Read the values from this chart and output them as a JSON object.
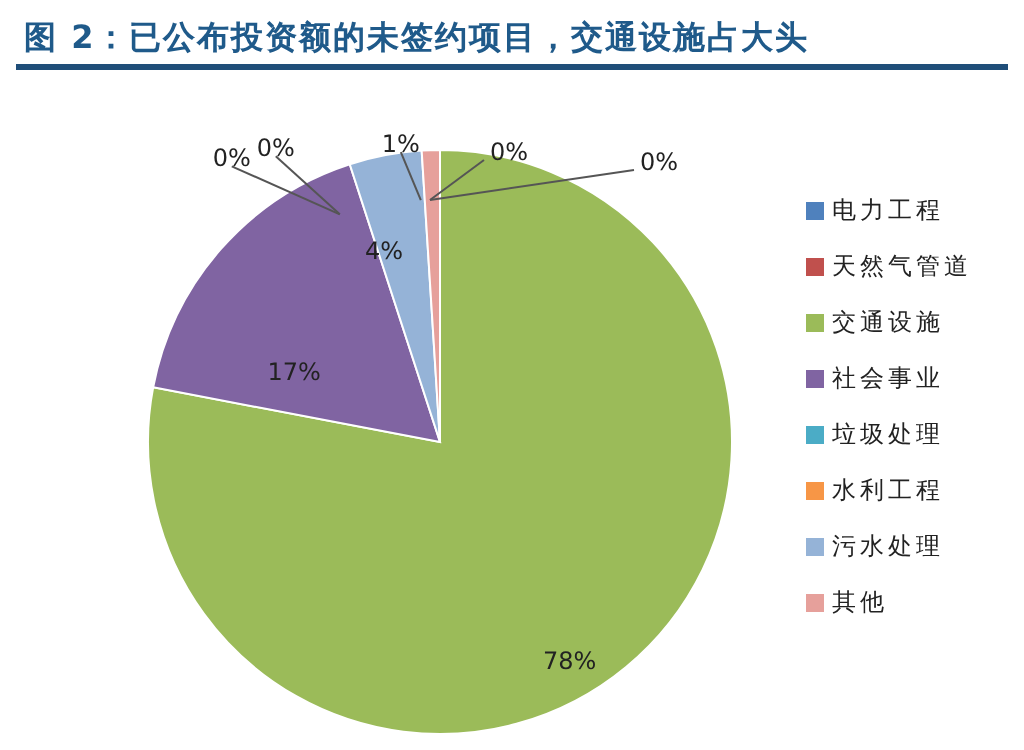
{
  "chart_data": {
    "type": "pie",
    "title": "图 2：已公布投资额的未签约项目，交通设施占大头",
    "categories": [
      "电力工程",
      "天然气管道",
      "交通设施",
      "社会事业",
      "垃圾处理",
      "水利工程",
      "污水处理",
      "其他"
    ],
    "values": [
      0,
      0,
      78,
      17,
      0,
      0,
      4,
      1
    ],
    "colors": [
      "#4f81bd",
      "#c0504d",
      "#9bbb59",
      "#8064a2",
      "#4bacc6",
      "#f79646",
      "#95b3d7",
      "#e6a09b"
    ],
    "value_labels": [
      "0%",
      "0%",
      "78%",
      "17%",
      "0%",
      "0%",
      "4%",
      "1%"
    ],
    "legend": "right"
  }
}
